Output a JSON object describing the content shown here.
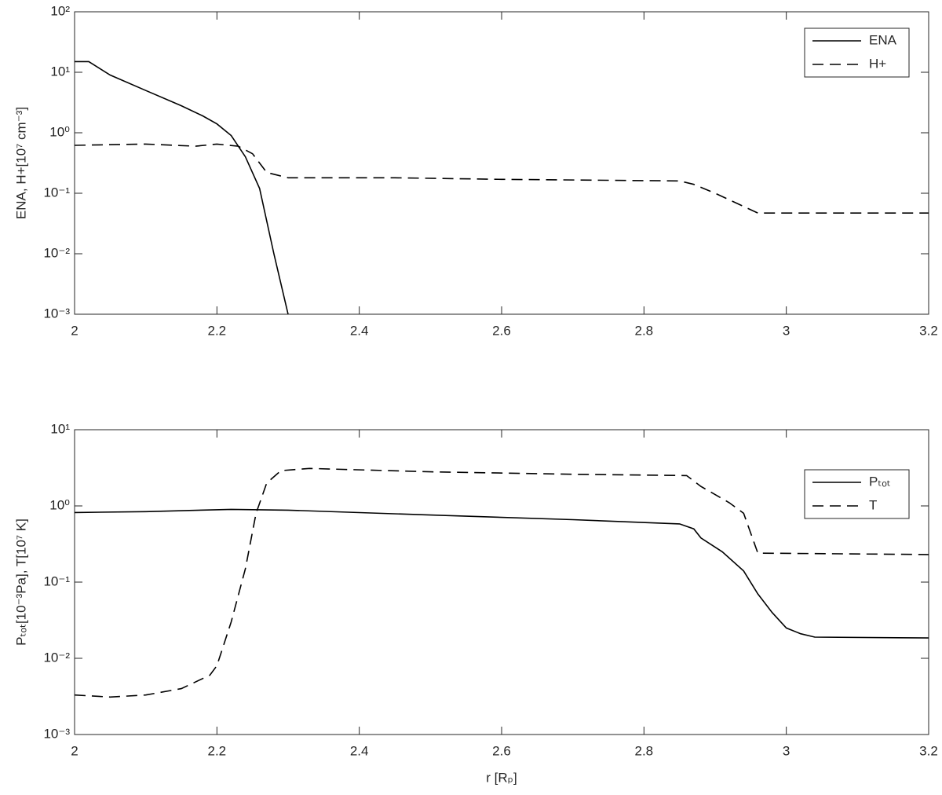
{
  "chart_data": [
    {
      "type": "line",
      "yscale": "log",
      "ylabel": "ENA, H+[10⁷ cm⁻³]",
      "legend": "upper right",
      "xlim": [
        2,
        3.2
      ],
      "xticks": [
        2,
        2.2,
        2.4,
        2.6,
        2.8,
        3,
        3.2
      ],
      "ylim": [
        0.001,
        100
      ],
      "yticks": [
        {
          "value": 0.001,
          "label": "10⁻³"
        },
        {
          "value": 0.01,
          "label": "10⁻²"
        },
        {
          "value": 0.1,
          "label": "10⁻¹"
        },
        {
          "value": 1,
          "label": "10⁰"
        },
        {
          "value": 10,
          "label": "10¹"
        },
        {
          "value": 100,
          "label": "10²"
        }
      ],
      "series": [
        {
          "name": "ENA",
          "color": "#000000",
          "style": "solid",
          "x": [
            2,
            2.02,
            2.05,
            2.1,
            2.15,
            2.18,
            2.2,
            2.22,
            2.24,
            2.26,
            2.28,
            2.3
          ],
          "values": [
            15,
            15,
            9,
            5,
            2.8,
            1.9,
            1.4,
            0.9,
            0.4,
            0.12,
            0.01,
            0.001
          ]
        },
        {
          "name": "H+",
          "color": "#000000",
          "style": "dashed",
          "x": [
            2,
            2.1,
            2.17,
            2.2,
            2.23,
            2.25,
            2.27,
            2.3,
            2.45,
            2.6,
            2.85,
            2.87,
            2.9,
            2.96,
            3.2
          ],
          "values": [
            0.62,
            0.65,
            0.6,
            0.65,
            0.6,
            0.45,
            0.22,
            0.18,
            0.18,
            0.17,
            0.16,
            0.14,
            0.1,
            0.047,
            0.047
          ]
        }
      ]
    },
    {
      "type": "line",
      "yscale": "log",
      "xlabel": "r [Rₚ]",
      "ylabel": "Pₜₒₜ[10⁻³Pa], T[10⁷ K]",
      "legend": "upper right",
      "xlim": [
        2,
        3.2
      ],
      "xticks": [
        2,
        2.2,
        2.4,
        2.6,
        2.8,
        3,
        3.2
      ],
      "ylim": [
        0.001,
        10
      ],
      "yticks": [
        {
          "value": 0.001,
          "label": "10⁻³"
        },
        {
          "value": 0.01,
          "label": "10⁻²"
        },
        {
          "value": 0.1,
          "label": "10⁻¹"
        },
        {
          "value": 1,
          "label": "10⁰"
        },
        {
          "value": 10,
          "label": "10¹"
        }
      ],
      "series": [
        {
          "name": "Pₜₒₜ",
          "color": "#000000",
          "style": "solid",
          "x": [
            2,
            2.1,
            2.22,
            2.3,
            2.5,
            2.7,
            2.85,
            2.87,
            2.88,
            2.91,
            2.94,
            2.96,
            2.98,
            3.0,
            3.02,
            3.04,
            3.2
          ],
          "values": [
            0.82,
            0.84,
            0.9,
            0.88,
            0.76,
            0.66,
            0.58,
            0.5,
            0.38,
            0.25,
            0.14,
            0.07,
            0.04,
            0.025,
            0.021,
            0.019,
            0.0185
          ]
        },
        {
          "name": "T",
          "color": "#000000",
          "style": "dashed",
          "x": [
            2,
            2.05,
            2.1,
            2.15,
            2.19,
            2.2,
            2.22,
            2.24,
            2.255,
            2.27,
            2.29,
            2.33,
            2.5,
            2.7,
            2.86,
            2.88,
            2.92,
            2.94,
            2.96,
            3.2
          ],
          "values": [
            0.0033,
            0.0031,
            0.0033,
            0.004,
            0.006,
            0.008,
            0.03,
            0.15,
            0.8,
            2.0,
            2.9,
            3.1,
            2.8,
            2.6,
            2.5,
            1.8,
            1.1,
            0.8,
            0.24,
            0.23
          ]
        }
      ]
    }
  ]
}
